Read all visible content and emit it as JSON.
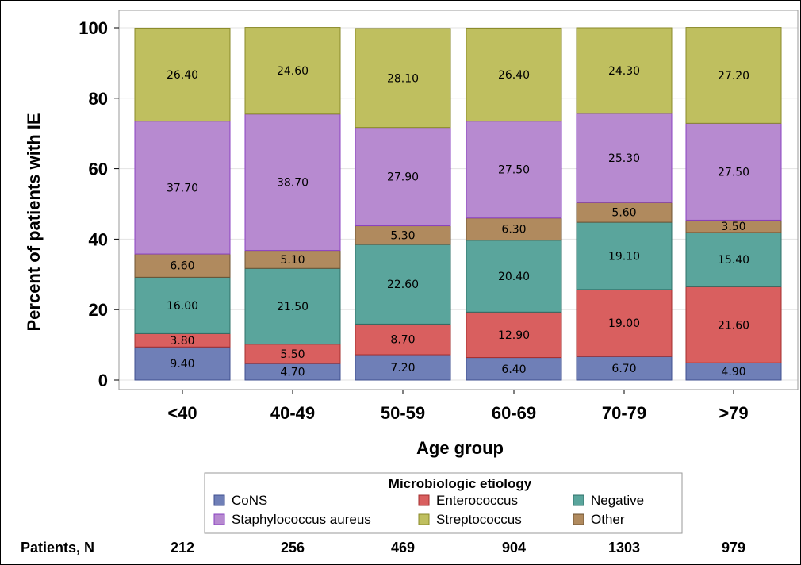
{
  "chart_data": {
    "type": "bar",
    "stacked": true,
    "title": "",
    "xlabel": "Age group",
    "ylabel": "Percent of patients with IE",
    "ylim": [
      0,
      100
    ],
    "yticks": [
      "0",
      "20",
      "40",
      "60",
      "80",
      "100"
    ],
    "grid": true,
    "categories": [
      "<40",
      "40-49",
      "50-59",
      "60-69",
      "70-79",
      ">79"
    ],
    "series": [
      {
        "name": "CoNS",
        "color": "#6f7fb7",
        "stroke": "#3f4f8f",
        "values": [
          9.4,
          4.7,
          7.2,
          6.4,
          6.7,
          4.9
        ],
        "labels": [
          "9.40",
          "4.70",
          "7.20",
          "6.40",
          "6.70",
          "4.90"
        ]
      },
      {
        "name": "Enterococcus",
        "color": "#d95f5f",
        "stroke": "#a32d2d",
        "values": [
          3.8,
          5.5,
          8.7,
          12.9,
          19.0,
          21.6
        ],
        "labels": [
          "3.80",
          "5.50",
          "8.70",
          "12.90",
          "19.00",
          "21.60"
        ]
      },
      {
        "name": "Negative",
        "color": "#5aa59c",
        "stroke": "#2d7068",
        "values": [
          16.0,
          21.5,
          22.6,
          20.4,
          19.1,
          15.4
        ],
        "labels": [
          "16.00",
          "21.50",
          "22.60",
          "20.40",
          "19.10",
          "15.40"
        ]
      },
      {
        "name": "Other",
        "color": "#b08a5e",
        "stroke": "#6e5232",
        "values": [
          6.6,
          5.1,
          5.3,
          6.3,
          5.6,
          3.5
        ],
        "labels": [
          "6.60",
          "5.10",
          "5.30",
          "6.30",
          "5.60",
          "3.50"
        ]
      },
      {
        "name": "Staphylococcus aureus",
        "color": "#b78ad0",
        "stroke": "#8a40c0",
        "values": [
          37.7,
          38.7,
          27.9,
          27.5,
          25.3,
          27.5
        ],
        "labels": [
          "37.70",
          "38.70",
          "27.90",
          "27.50",
          "25.30",
          "27.50"
        ]
      },
      {
        "name": "Streptococcus",
        "color": "#bfbf5f",
        "stroke": "#8a8a2a",
        "values": [
          26.4,
          24.6,
          28.1,
          26.4,
          24.3,
          27.2
        ],
        "labels": [
          "26.40",
          "24.60",
          "28.10",
          "26.40",
          "24.30",
          "27.20"
        ]
      }
    ],
    "legend": {
      "title": "Microbiologic etiology",
      "placement": "bottom",
      "rows": [
        [
          "CoNS",
          "Enterococcus",
          "Negative"
        ],
        [
          "Staphylococcus aureus",
          "Streptococcus",
          "Other"
        ]
      ]
    },
    "patients": {
      "label": "Patients, N",
      "values": [
        "212",
        "256",
        "469",
        "904",
        "1303",
        "979"
      ]
    }
  }
}
